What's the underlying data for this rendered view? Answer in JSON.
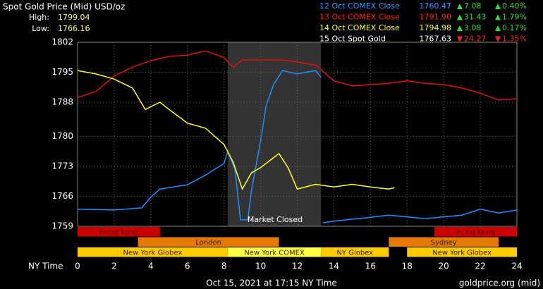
{
  "chart_data": {
    "type": "line",
    "title": "Spot Gold Price (Mid) USD/oz",
    "high_label": "High:",
    "high": "1799.04",
    "low_label": "Low:",
    "low": "1766.16",
    "header_rows": [
      {
        "name": "12 Oct COMEX Close",
        "price": "1760.47",
        "change": "7.08",
        "pct": "0.40%",
        "direction": "up",
        "color": "#3399ff"
      },
      {
        "name": "13 Oct COMEX Close",
        "price": "1791.90",
        "change": "31.43",
        "pct": "1.79%",
        "direction": "up",
        "color": "#ff2020"
      },
      {
        "name": "14 Oct COMEX Close",
        "price": "1794.98",
        "change": "3.08",
        "pct": "0.17%",
        "direction": "up",
        "color": "#ffff33"
      },
      {
        "name": "15 Oct Spot Gold",
        "price": "1767.63",
        "change": "24.27",
        "pct": "1.35%",
        "direction": "down",
        "color": "#ffffff"
      }
    ],
    "xlabel": "NY Time",
    "xlim": [
      0,
      24
    ],
    "xticks": [
      0,
      2,
      4,
      6,
      8,
      10,
      12,
      14,
      16,
      18,
      20,
      22,
      24
    ],
    "ylim": [
      1759,
      1802
    ],
    "yticks": [
      1759,
      1766,
      1773,
      1780,
      1788,
      1795,
      1802
    ],
    "grid": true,
    "closed": {
      "start": 8.2,
      "end": 13.3,
      "label": "Market Closed"
    },
    "series": [
      {
        "color": "#1e8fff",
        "x": [
          0,
          2,
          3.5,
          4,
          4.5,
          6,
          7,
          8,
          8.2,
          8.6,
          8.9,
          9.3,
          9.5,
          10,
          10.3,
          10.7,
          11.2,
          12,
          13,
          13.3,
          13.35,
          13.4,
          14,
          16,
          17,
          19,
          21,
          22,
          23,
          24
        ],
        "values": [
          1763.0,
          1762.8,
          1763.3,
          1765.8,
          1767.7,
          1768.7,
          1771.0,
          1773.7,
          1776.5,
          1772.3,
          1760.5,
          1760.5,
          1767.4,
          1779.0,
          1787.2,
          1792.1,
          1795.4,
          1794.6,
          1795.4,
          1793.8,
          null,
          1759.8,
          1760.2,
          1761.1,
          1761.6,
          1760.8,
          1761.6,
          1763.0,
          1762.1,
          1762.8
        ]
      },
      {
        "color": "#e01010",
        "x": [
          0,
          1,
          2,
          3,
          4,
          5,
          6,
          7,
          8,
          8.5,
          9,
          10,
          11,
          12,
          13,
          14,
          15,
          17,
          18,
          19,
          20,
          21,
          22,
          23,
          24
        ],
        "values": [
          1789.1,
          1790.5,
          1794.1,
          1796.2,
          1797.7,
          1798.7,
          1799.0,
          1800.0,
          1798.4,
          1796.2,
          1797.9,
          1797.9,
          1797.9,
          1797.4,
          1796.7,
          1793.0,
          1791.8,
          1792.4,
          1793.0,
          1792.4,
          1792.1,
          1791.3,
          1790.1,
          1788.5,
          1788.8
        ]
      },
      {
        "color": "#ffff22",
        "x": [
          0,
          1,
          2,
          3,
          3.7,
          4.5,
          5,
          6,
          7,
          8,
          8.5,
          9,
          9.5,
          10,
          11,
          11.5,
          12,
          13,
          14,
          15,
          16,
          17,
          17.3
        ],
        "values": [
          1795.4,
          1794.6,
          1793.4,
          1791.3,
          1786.3,
          1788.0,
          1786.3,
          1783.1,
          1781.9,
          1778.1,
          1774.0,
          1767.7,
          1771.5,
          1772.7,
          1776.0,
          1772.7,
          1767.7,
          1768.8,
          1768.2,
          1768.8,
          1768.2,
          1767.7,
          1768.0
        ]
      }
    ],
    "sessions": [
      {
        "label": "Hong Kong",
        "start": 0,
        "end": 4.5,
        "row": 0,
        "color": "#cc0000"
      },
      {
        "label": "Hong Kong",
        "start": 19.5,
        "end": 24,
        "row": 0,
        "color": "#cc0000"
      },
      {
        "label": "London",
        "start": 3.3,
        "end": 11,
        "row": 1,
        "color": "#e67a00"
      },
      {
        "label": "Sydney",
        "start": 17,
        "end": 23,
        "row": 1,
        "color": "#e67a00"
      },
      {
        "label": "New York Globex",
        "start": 0,
        "end": 8.2,
        "row": 2,
        "color": "#ffcc00"
      },
      {
        "label": "New York COMEX",
        "start": 8.2,
        "end": 13.3,
        "row": 2,
        "color": "#ffff44"
      },
      {
        "label": "NY Globex",
        "start": 13.3,
        "end": 17,
        "row": 2,
        "color": "#ffcc00"
      },
      {
        "label": "New York Globex",
        "start": 18,
        "end": 24,
        "row": 2,
        "color": "#ffcc00"
      }
    ],
    "footer_time": "Oct 15, 2021 at 17:15 NY Time",
    "footer_source": "goldprice.org (mid)"
  }
}
